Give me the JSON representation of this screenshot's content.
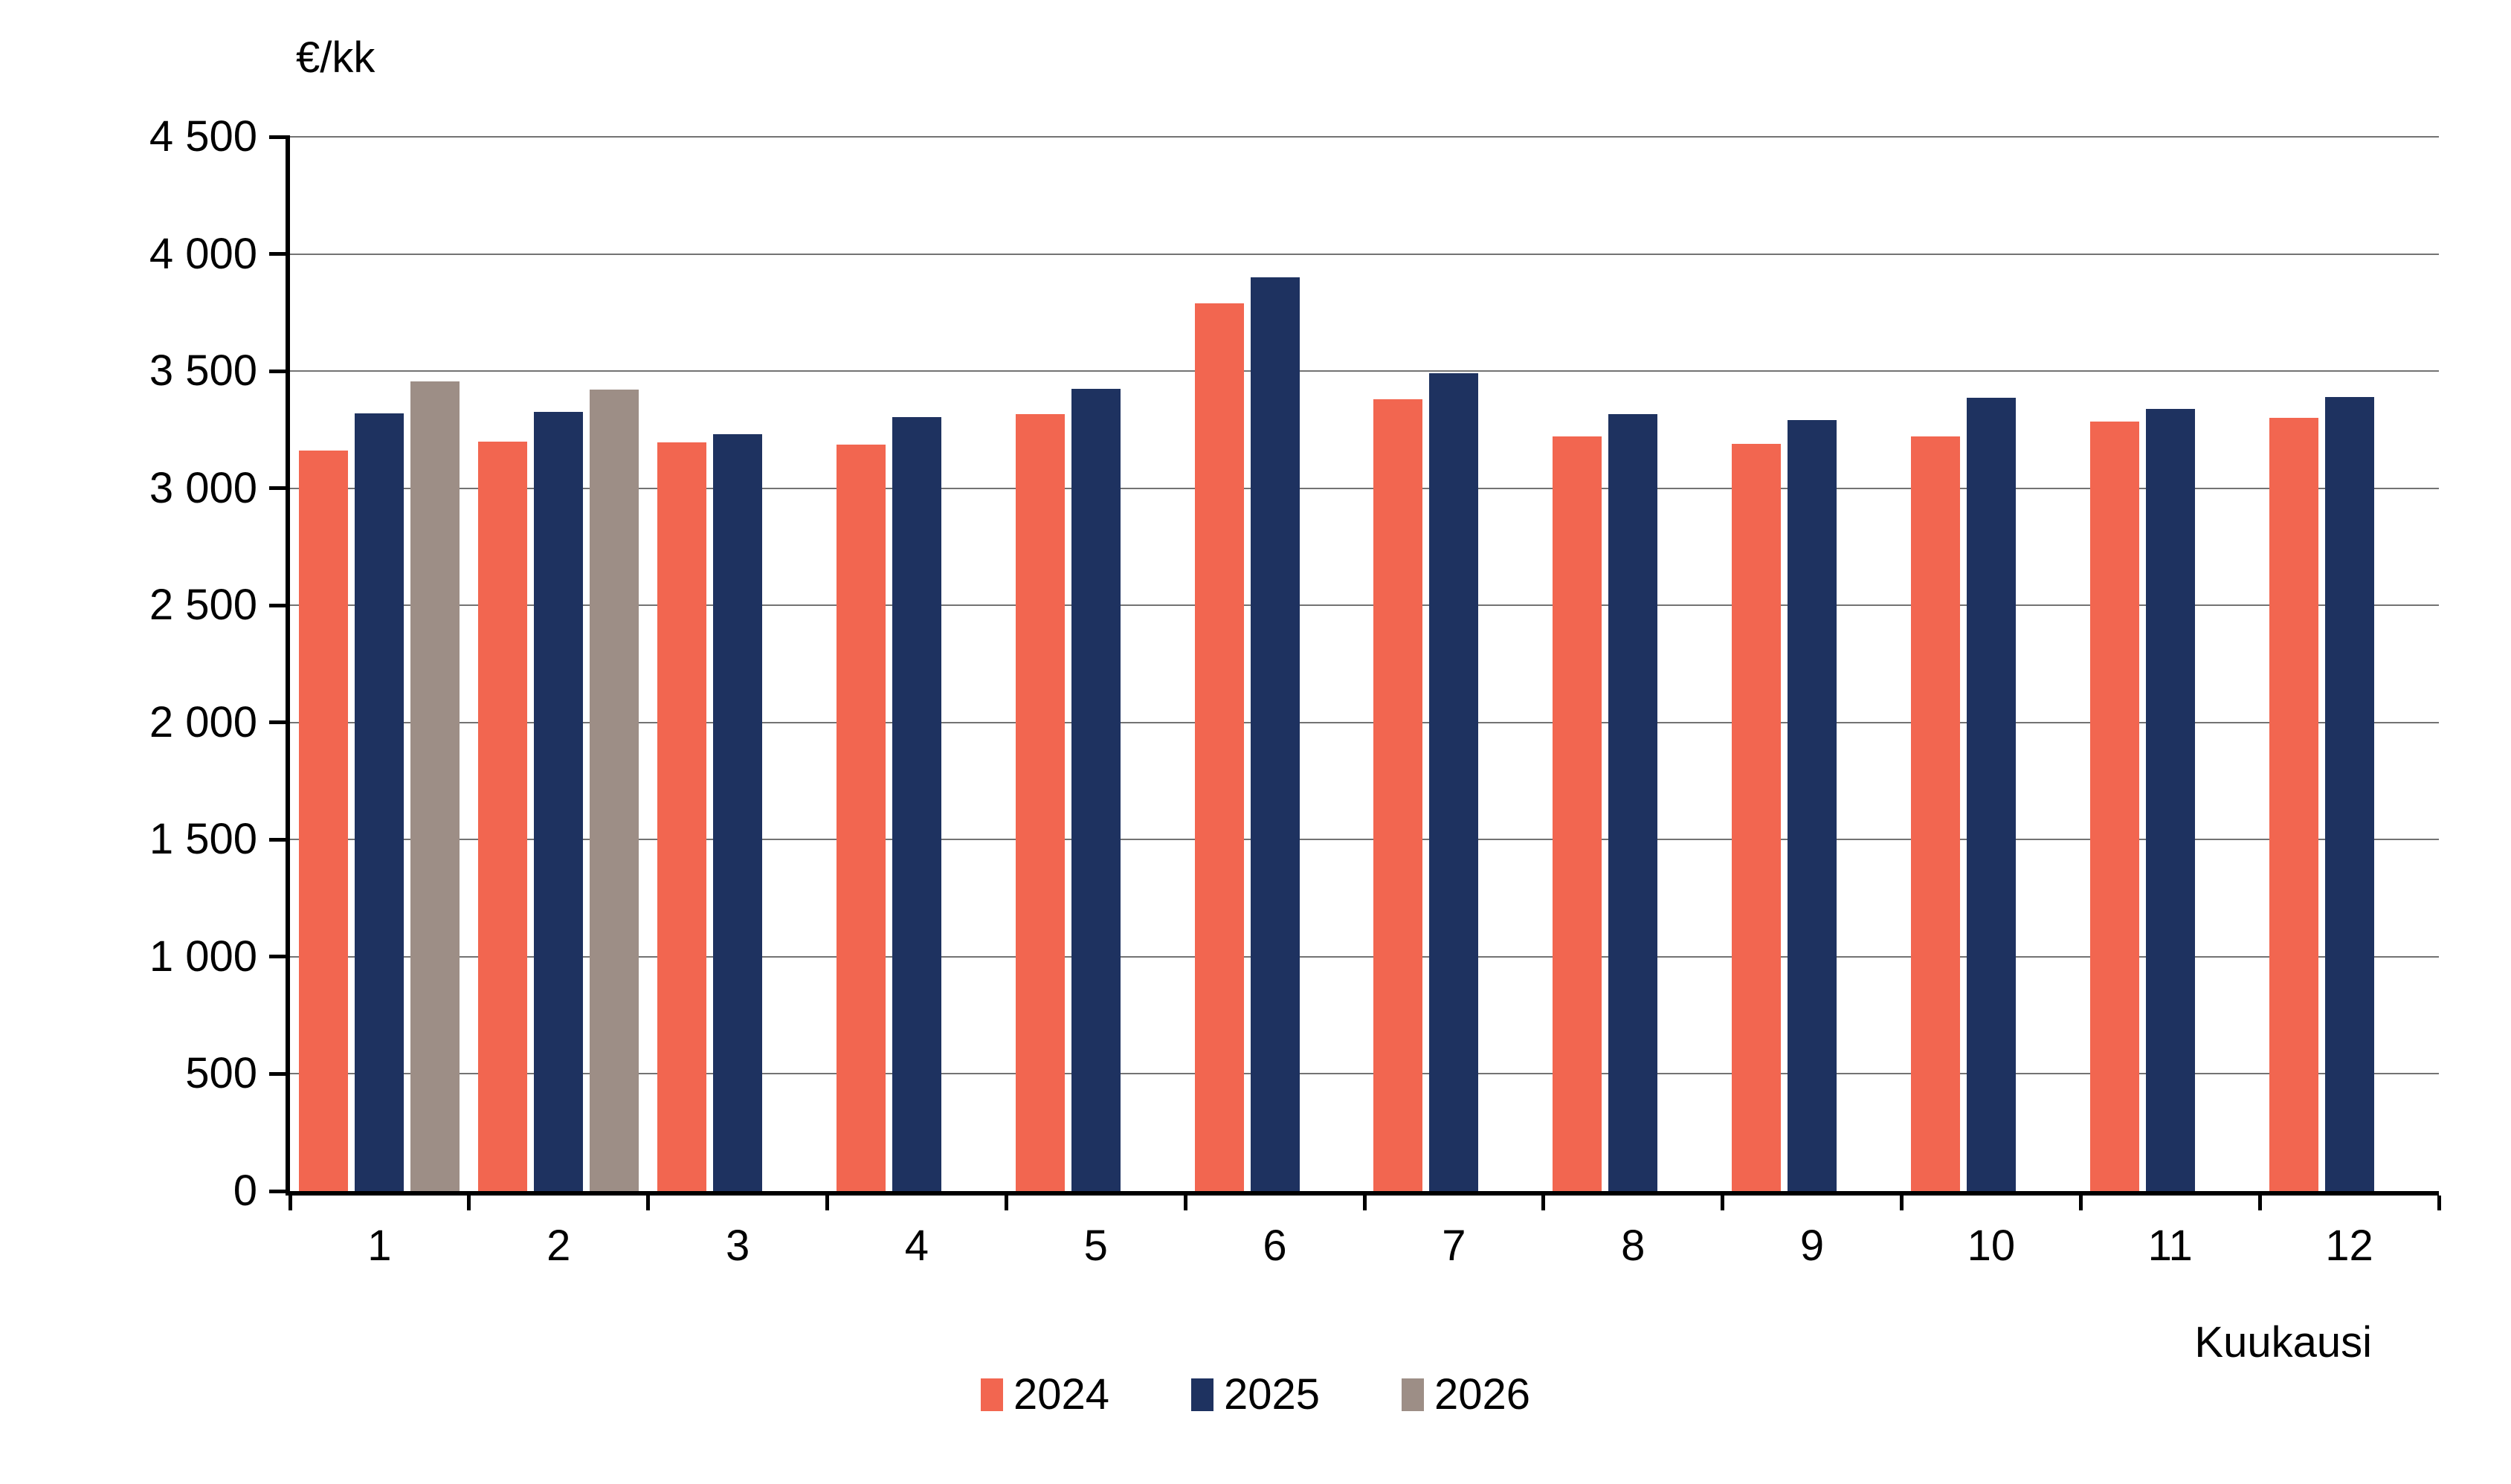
{
  "chart_data": {
    "type": "bar",
    "title": "",
    "y_axis_title": "€/kk",
    "x_axis_title": "Kuukausi",
    "categories": [
      "1",
      "2",
      "3",
      "4",
      "5",
      "6",
      "7",
      "8",
      "9",
      "10",
      "11",
      "12"
    ],
    "series": [
      {
        "name": "2024",
        "color": "#F26650",
        "values": [
          3160,
          3200,
          3195,
          3185,
          3315,
          3790,
          3380,
          3220,
          3190,
          3220,
          3285,
          3300
        ]
      },
      {
        "name": "2025",
        "color": "#1E3260",
        "values": [
          3320,
          3325,
          3230,
          3305,
          3425,
          3900,
          3490,
          3315,
          3290,
          3385,
          3340,
          3390
        ]
      },
      {
        "name": "2026",
        "color": "#9D8E86",
        "values": [
          3455,
          3420,
          null,
          null,
          null,
          null,
          null,
          null,
          null,
          null,
          null,
          null
        ]
      }
    ],
    "ylim": [
      0,
      4500
    ],
    "y_tick_step": 500,
    "y_tick_labels": [
      "0",
      "500",
      "1 000",
      "1 500",
      "2 000",
      "2 500",
      "3 000",
      "3 500",
      "4 000",
      "4 500"
    ],
    "grid": true,
    "gridline_color": "#737373",
    "axis_color": "#000000",
    "legend_position": "bottom"
  }
}
